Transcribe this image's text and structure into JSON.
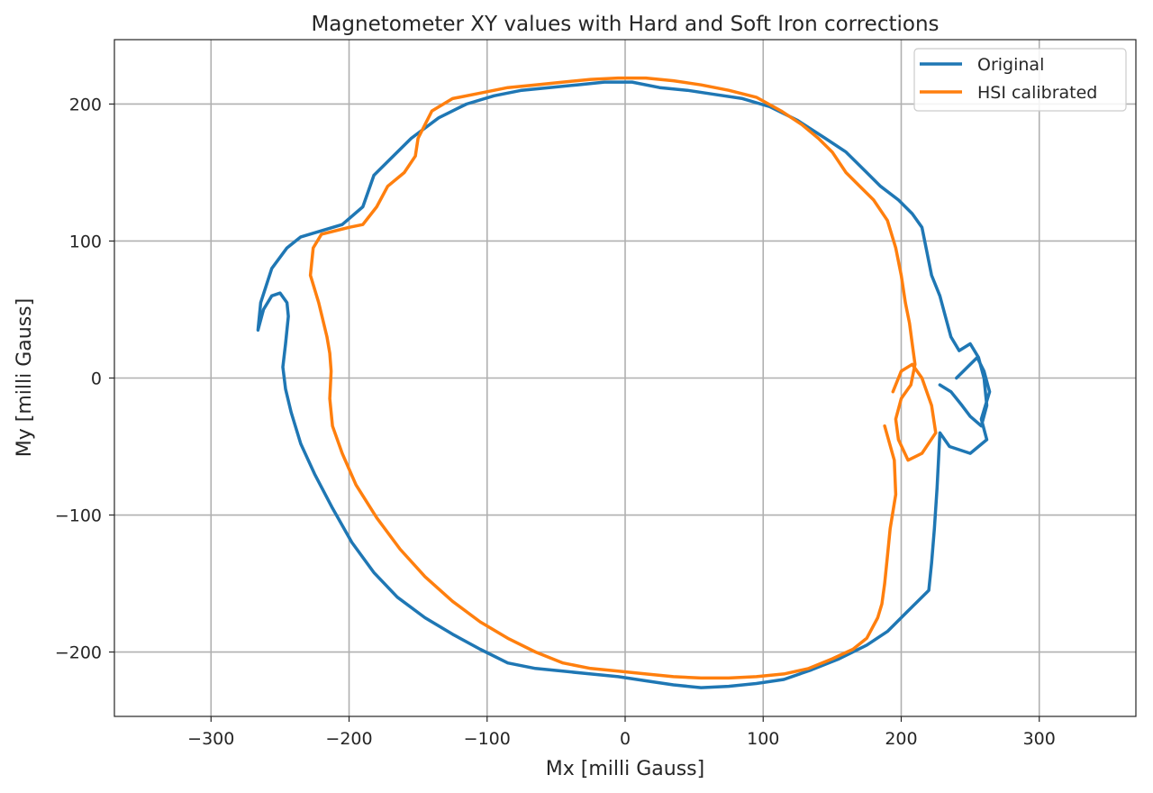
{
  "chart_data": {
    "type": "line",
    "title": "Magnetometer XY values with Hard and Soft Iron corrections",
    "xlabel": "Mx [milli Gauss]",
    "ylabel": "My [milli Gauss]",
    "xlim": [
      -370,
      370
    ],
    "ylim": [
      -247,
      247
    ],
    "xticks": [
      -300,
      -200,
      -100,
      0,
      100,
      200,
      300
    ],
    "yticks": [
      -200,
      -100,
      0,
      100,
      200
    ],
    "xtick_labels": [
      "−300",
      "−200",
      "−100",
      "0",
      "100",
      "200",
      "300"
    ],
    "ytick_labels": [
      "−200",
      "−100",
      "0",
      "100",
      "200"
    ],
    "grid": true,
    "legend_position": "top-right",
    "series": [
      {
        "name": "Original",
        "color": "#1f77b4",
        "x": [
          240,
          255,
          260,
          264,
          258,
          262,
          250,
          235,
          228,
          226,
          224,
          222,
          220,
          205,
          190,
          175,
          155,
          135,
          115,
          95,
          75,
          55,
          35,
          15,
          -5,
          -25,
          -45,
          -65,
          -85,
          -105,
          -125,
          -145,
          -165,
          -182,
          -198,
          -212,
          -225,
          -235,
          -242,
          -246,
          -248,
          -246,
          -244,
          -245,
          -250,
          -256,
          -262,
          -266,
          -264,
          -256,
          -245,
          -235,
          -205,
          -190,
          -182,
          -170,
          -155,
          -135,
          -115,
          -95,
          -75,
          -55,
          -35,
          -15,
          5,
          25,
          45,
          65,
          85,
          105,
          125,
          145,
          160,
          175,
          185,
          198,
          208,
          215,
          218,
          222,
          228,
          232,
          236,
          242,
          250,
          256,
          260,
          262,
          258,
          250,
          244,
          236,
          228
        ],
        "y": [
          0,
          15,
          5,
          -10,
          -30,
          -45,
          -55,
          -50,
          -40,
          -80,
          -110,
          -135,
          -155,
          -170,
          -185,
          -195,
          -205,
          -213,
          -220,
          -223,
          -225,
          -226,
          -224,
          -221,
          -218,
          -216,
          -214,
          -212,
          -208,
          -198,
          -187,
          -175,
          -160,
          -142,
          -120,
          -95,
          -70,
          -48,
          -25,
          -8,
          8,
          25,
          45,
          55,
          62,
          60,
          50,
          35,
          55,
          80,
          95,
          103,
          112,
          125,
          148,
          160,
          175,
          190,
          200,
          206,
          210,
          212,
          214,
          216,
          216,
          212,
          210,
          207,
          204,
          198,
          188,
          175,
          165,
          150,
          140,
          130,
          120,
          110,
          95,
          75,
          60,
          45,
          30,
          20,
          25,
          15,
          0,
          -20,
          -35,
          -28,
          -20,
          -10,
          -5
        ]
      },
      {
        "name": "HSI calibrated",
        "color": "#ff7f0e",
        "x": [
          188,
          195,
          196,
          192,
          190,
          188,
          186,
          183,
          175,
          165,
          150,
          133,
          115,
          95,
          75,
          55,
          35,
          15,
          -5,
          -25,
          -45,
          -65,
          -85,
          -105,
          -125,
          -145,
          -163,
          -180,
          -195,
          -205,
          -212,
          -214,
          -213,
          -214,
          -216,
          -222,
          -228,
          -226,
          -220,
          -200,
          -190,
          -180,
          -172,
          -160,
          -152,
          -150,
          -145,
          -140,
          -125,
          -105,
          -85,
          -65,
          -45,
          -25,
          -5,
          15,
          35,
          55,
          75,
          95,
          113,
          128,
          140,
          150,
          160,
          170,
          180,
          190,
          196,
          200,
          203,
          206,
          208,
          210,
          207,
          200,
          196,
          198,
          205,
          215,
          225,
          222,
          215,
          208,
          200,
          194
        ],
        "y": [
          -35,
          -60,
          -85,
          -110,
          -130,
          -150,
          -165,
          -175,
          -190,
          -198,
          -205,
          -212,
          -216,
          -218,
          -219,
          -219,
          -218,
          -216,
          -214,
          -212,
          -208,
          -200,
          -190,
          -178,
          -163,
          -145,
          -125,
          -102,
          -78,
          -55,
          -35,
          -15,
          5,
          18,
          30,
          55,
          75,
          95,
          105,
          110,
          112,
          125,
          140,
          150,
          162,
          175,
          185,
          195,
          204,
          208,
          212,
          214,
          216,
          218,
          219,
          219,
          217,
          214,
          210,
          205,
          195,
          185,
          175,
          165,
          150,
          140,
          130,
          115,
          95,
          75,
          55,
          40,
          25,
          10,
          -5,
          -15,
          -30,
          -45,
          -60,
          -55,
          -40,
          -20,
          0,
          10,
          5,
          -10
        ]
      }
    ]
  }
}
